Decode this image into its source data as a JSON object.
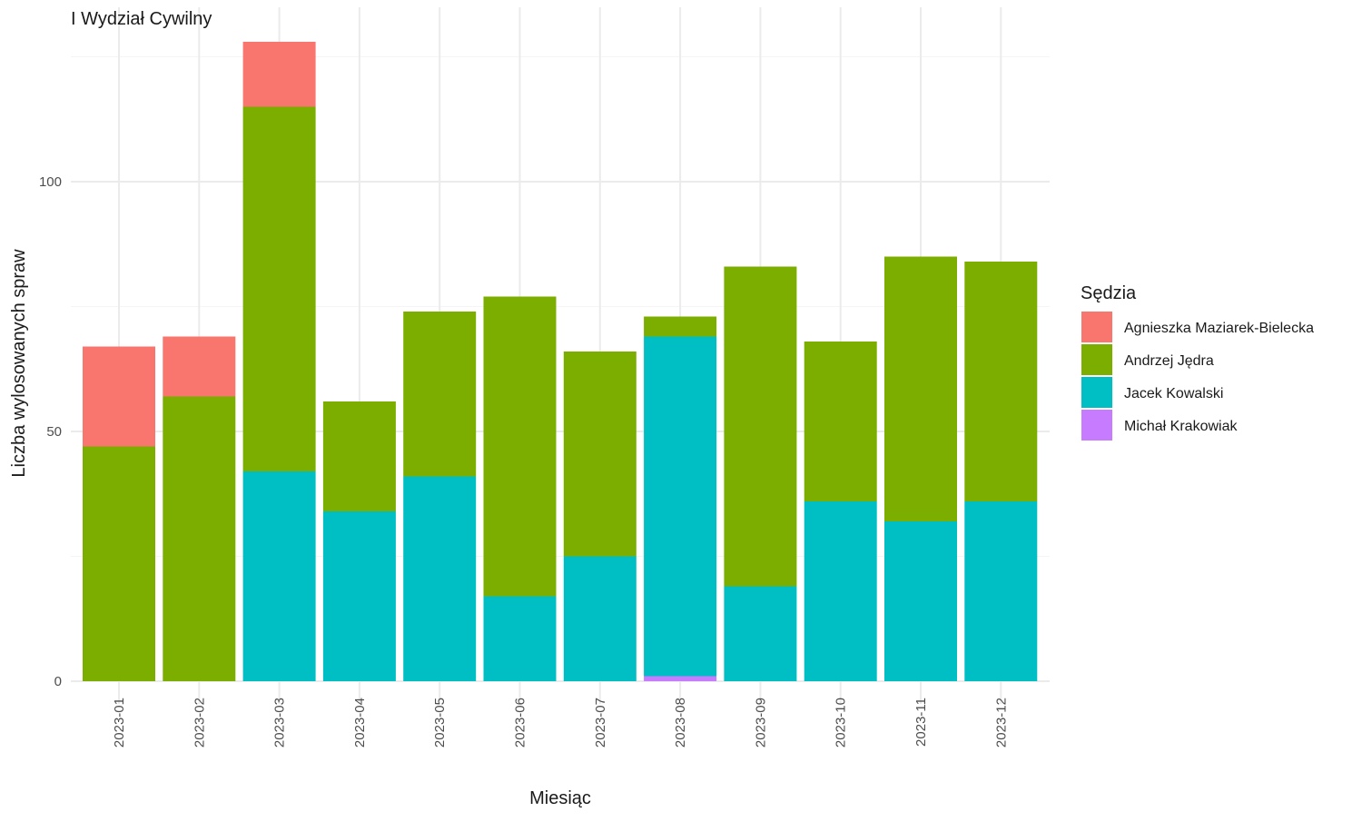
{
  "chart_data": {
    "type": "bar",
    "stacked": true,
    "title": "I Wydział Cywilny",
    "xlabel": "Miesiąc",
    "ylabel": "Liczba wylosowanych spraw",
    "ylim": [
      0,
      130
    ],
    "yticks": [
      0,
      50,
      100
    ],
    "grid": true,
    "legend": {
      "title": "Sędzia",
      "placement": "right"
    },
    "categories": [
      "2023-01",
      "2023-02",
      "2023-03",
      "2023-04",
      "2023-05",
      "2023-06",
      "2023-07",
      "2023-08",
      "2023-09",
      "2023-10",
      "2023-11",
      "2023-12"
    ],
    "series": [
      {
        "name": "Michał Krakowiak",
        "color": "#C77CFF",
        "values": [
          0,
          0,
          0,
          0,
          0,
          0,
          0,
          1,
          0,
          0,
          0,
          0
        ]
      },
      {
        "name": "Jacek Kowalski",
        "color": "#00BFC4",
        "values": [
          0,
          0,
          42,
          34,
          41,
          17,
          25,
          68,
          19,
          36,
          32,
          36
        ]
      },
      {
        "name": "Andrzej Jędra",
        "color": "#7CAE00",
        "values": [
          47,
          57,
          73,
          22,
          33,
          60,
          41,
          4,
          64,
          32,
          53,
          48
        ]
      },
      {
        "name": "Agnieszka Maziarek-Bielecka",
        "color": "#F8766D",
        "values": [
          20,
          12,
          13,
          0,
          0,
          0,
          0,
          0,
          0,
          0,
          0,
          0
        ]
      }
    ],
    "legend_order": [
      "Agnieszka Maziarek-Bielecka",
      "Andrzej Jędra",
      "Jacek Kowalski",
      "Michał Krakowiak"
    ]
  }
}
